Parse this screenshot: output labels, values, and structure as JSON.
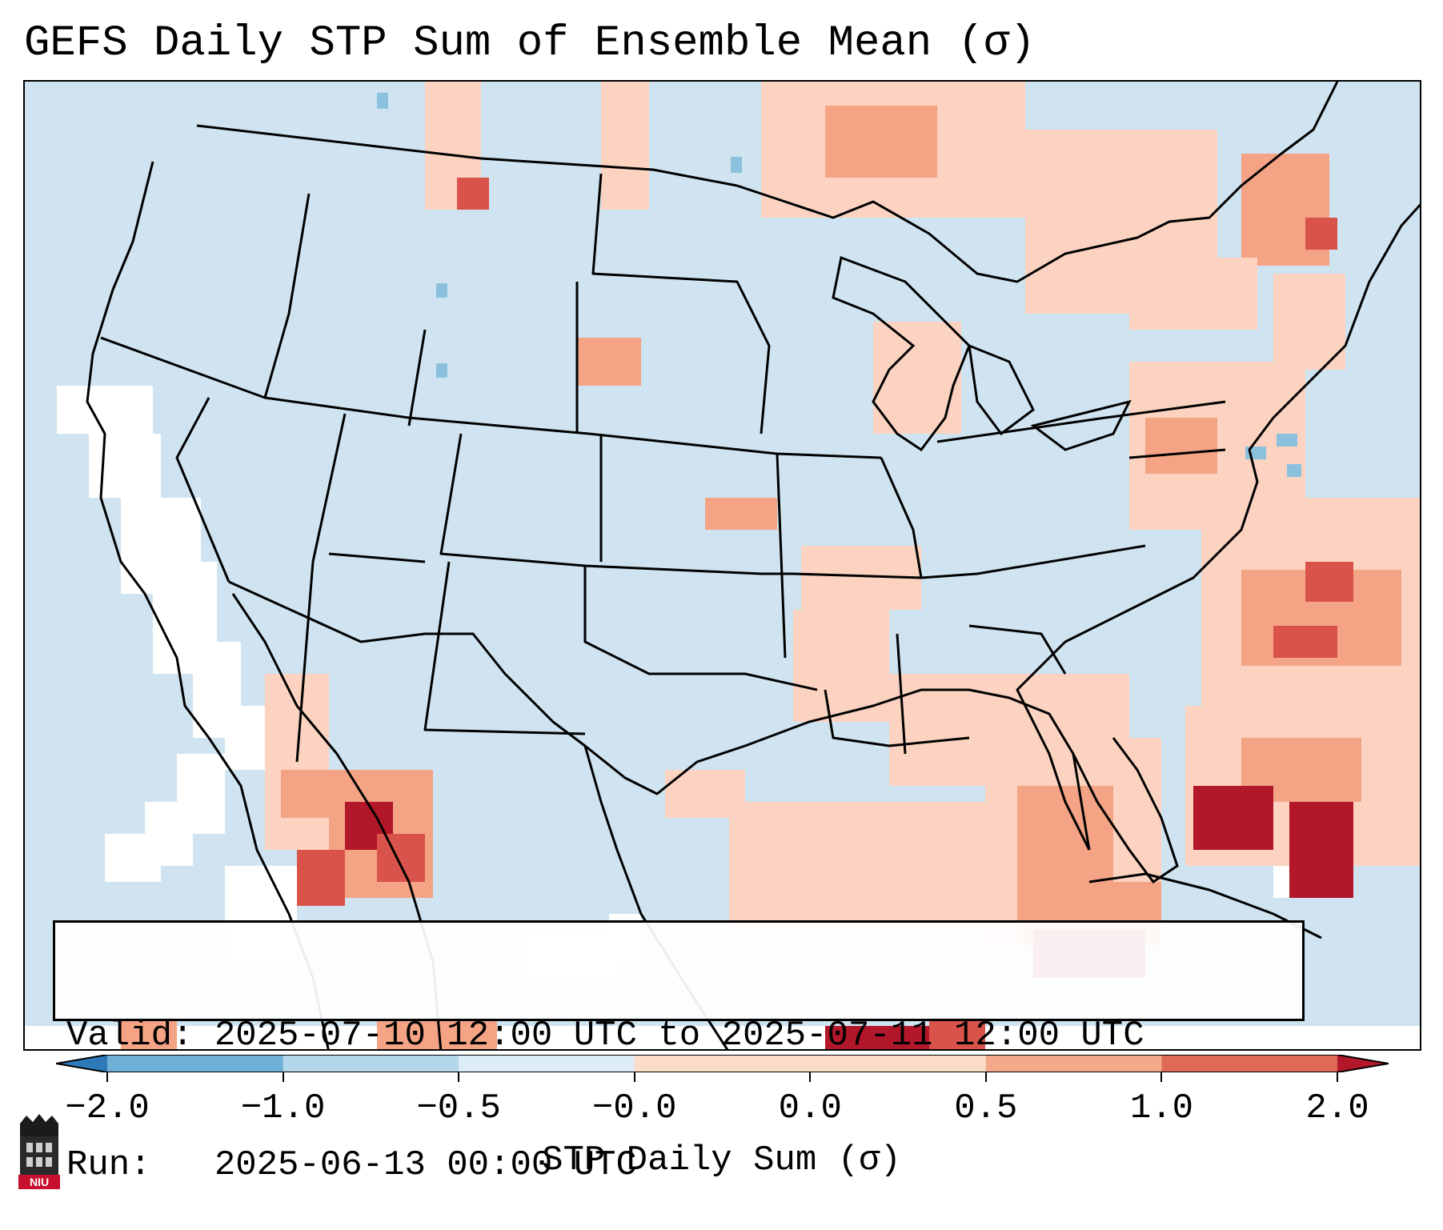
{
  "title": "GEFS Daily STP Sum of Ensemble Mean (σ)",
  "info": {
    "valid_line": "Valid: 2025-07-10 12:00 UTC to 2025-07-11 12:00 UTC",
    "run_line": "Run:   2025-06-13 00:00 UTC"
  },
  "colorbar": {
    "label": "STP Daily Sum (σ)",
    "ticks": [
      "−2.0",
      "−1.0",
      "−0.5",
      "−0.0",
      "0.0",
      "0.5",
      "1.0",
      "2.0"
    ],
    "colors": [
      "#2e7ab8",
      "#6fb0d8",
      "#b4d6ea",
      "#ddedf6",
      "#fbdcc8",
      "#f5a98a",
      "#e06a58",
      "#b3172a"
    ]
  },
  "logo": {
    "text": "NIU"
  },
  "colors": {
    "background_sea": "#cfe4f0",
    "white_region": "#ffffff",
    "light_red": "#fbd3c0",
    "mid_red": "#f4a385",
    "dark_red": "#d9534a",
    "deepest_red": "#b3172a",
    "blue_cell": "#8cc1de"
  }
}
